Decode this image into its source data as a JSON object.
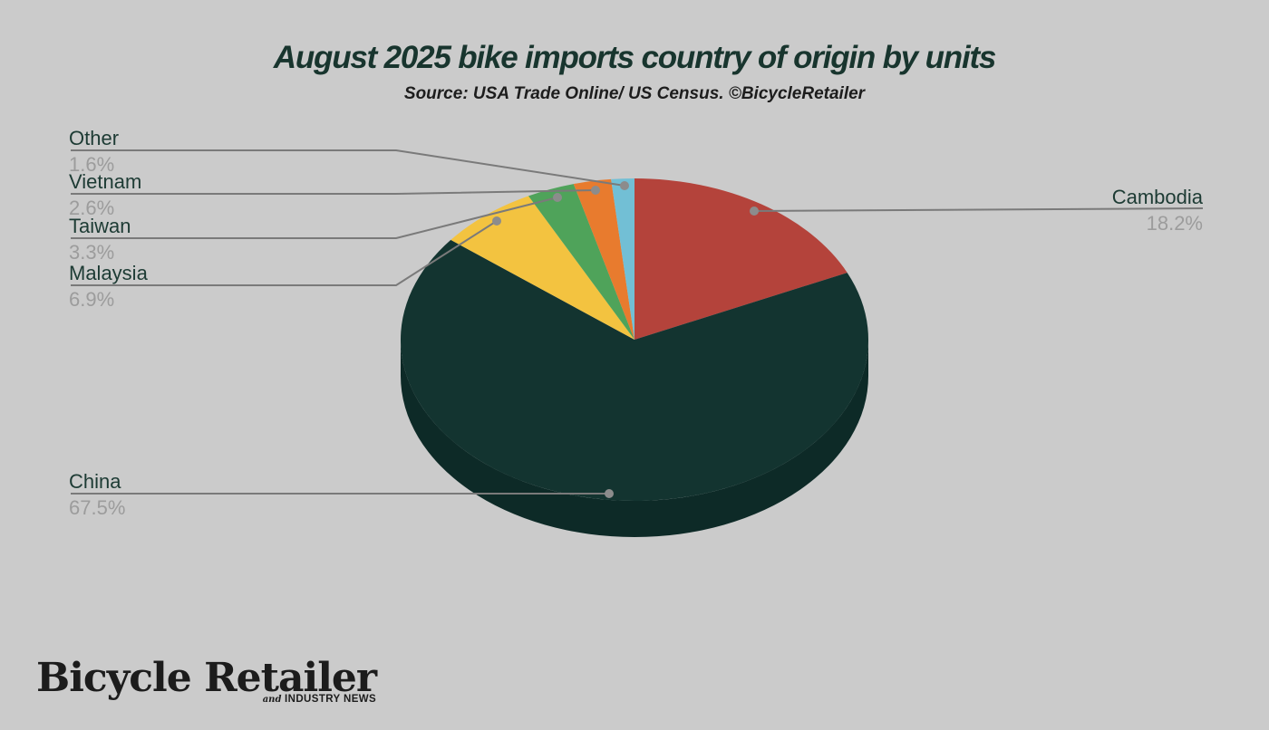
{
  "page": {
    "background": "#cbcbcb"
  },
  "header": {
    "title": "August 2025 bike imports country of origin by units",
    "subtitle": "Source: USA Trade Online/ US Census. ©BicycleRetailer"
  },
  "chart_data": {
    "type": "pie",
    "title": "August 2025 bike imports country of origin by units",
    "subtitle": "Source: USA Trade Online/ US Census. ©BicycleRetailer",
    "unit": "percent of units",
    "start_angle_deg": 0,
    "direction": "clockwise",
    "style": "3d-pie",
    "slices": [
      {
        "label": "Cambodia",
        "value": 18.2,
        "pct_label": "18.2%",
        "color": "#b4433b"
      },
      {
        "label": "China",
        "value": 67.5,
        "pct_label": "67.5%",
        "color": "#133430"
      },
      {
        "label": "Malaysia",
        "value": 6.9,
        "pct_label": "6.9%",
        "color": "#f3c340"
      },
      {
        "label": "Taiwan",
        "value": 3.3,
        "pct_label": "3.3%",
        "color": "#4fa35a"
      },
      {
        "label": "Vietnam",
        "value": 2.6,
        "pct_label": "2.6%",
        "color": "#e87b2e"
      },
      {
        "label": "Other",
        "value": 1.6,
        "pct_label": "1.6%",
        "color": "#72bfd5"
      }
    ],
    "side_color": "#0d2a27",
    "label_color": "#1d3b34",
    "pct_color": "#9c9c9c",
    "leader_color": "#7a7a7a",
    "dot_color": "#8c8c8c"
  },
  "footer": {
    "logo_main": "Bicycle Retailer",
    "logo_sub_and": "and",
    "logo_sub_rest": "INDUSTRY NEWS"
  }
}
